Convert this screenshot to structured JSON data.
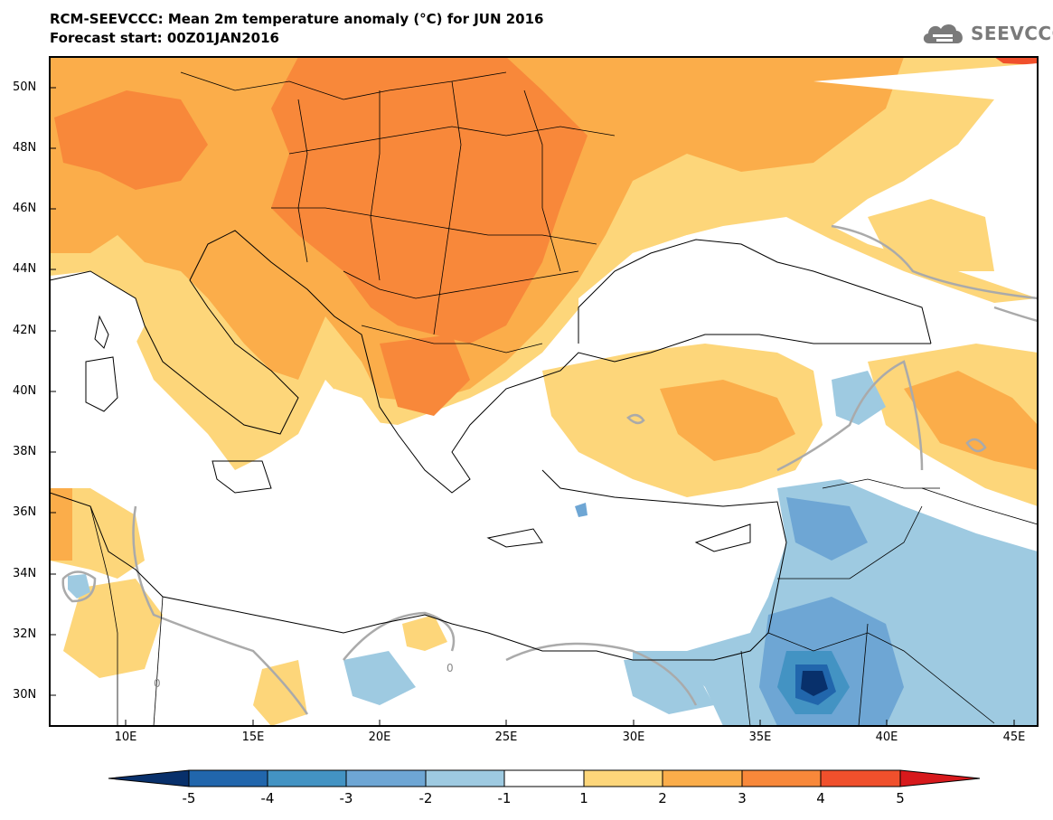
{
  "header": {
    "title": "RCM-SEEVCCC: Mean 2m temperature anomaly (°C) for JUN 2016",
    "subtitle": "Forecast start: 00Z01JAN2016",
    "logo_text": "SEEVCCC"
  },
  "map": {
    "lat_labels": [
      "50N",
      "48N",
      "46N",
      "44N",
      "42N",
      "40N",
      "38N",
      "36N",
      "34N",
      "32N",
      "30N"
    ],
    "lon_labels": [
      "10E",
      "15E",
      "20E",
      "25E",
      "30E",
      "35E",
      "40E",
      "45E"
    ],
    "contour_labels": [
      "0",
      "0"
    ]
  },
  "colorbar": {
    "labels": [
      "-5",
      "-4",
      "-3",
      "-2",
      "-1",
      "1",
      "2",
      "3",
      "4",
      "5"
    ],
    "colors": [
      "#08306b",
      "#2166ac",
      "#4393c3",
      "#6ea6d4",
      "#9ecae1",
      "#ffffff",
      "#fdd67a",
      "#fbad4a",
      "#f8883a",
      "#f0502c",
      "#d7191c"
    ]
  },
  "legend_colors": {
    "orange_dark": "#f8883a",
    "orange": "#fbad4a",
    "yellow": "#fdd67a",
    "blue_light": "#9ecae1",
    "blue_mid": "#6ea6d4",
    "blue_dark": "#2166ac",
    "navy": "#08306b",
    "contour_zero": "#aaaaaa"
  }
}
